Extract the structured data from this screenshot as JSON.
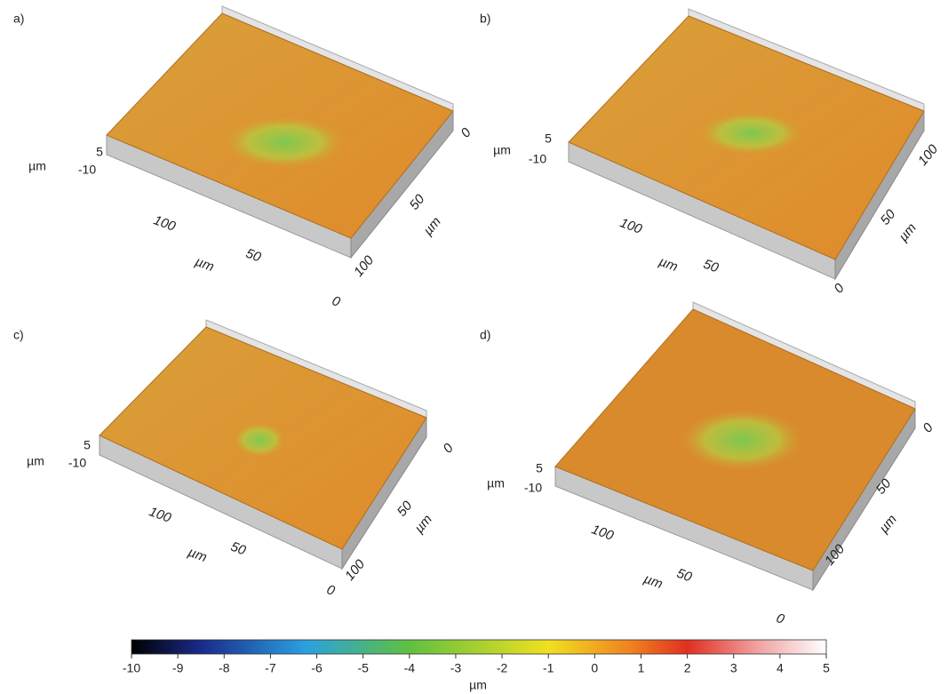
{
  "panels": [
    {
      "label": "a)",
      "z_ticks": [
        "5",
        "-10"
      ],
      "z_unit": "µm",
      "x_ticks": [
        "100",
        "50",
        "0"
      ],
      "x_unit": "µm",
      "y_ticks": [
        "0",
        "50",
        "100"
      ],
      "y_unit": "µm"
    },
    {
      "label": "b)",
      "z_ticks": [
        "5",
        "-10"
      ],
      "z_unit": "µm",
      "x_ticks": [
        "100",
        "50"
      ],
      "x_unit": "µm",
      "y_ticks": [
        "100",
        "50",
        "0"
      ],
      "y_unit": "µm"
    },
    {
      "label": "c)",
      "z_ticks": [
        "5",
        "-10"
      ],
      "z_unit": "µm",
      "x_ticks": [
        "100",
        "50",
        "0"
      ],
      "x_unit": "µm",
      "y_ticks": [
        "0",
        "50",
        "100"
      ],
      "y_unit": "µm"
    },
    {
      "label": "d)",
      "z_ticks": [
        "5",
        "-10"
      ],
      "z_unit": "µm",
      "x_ticks": [
        "100",
        "50",
        "0"
      ],
      "x_unit": "µm",
      "y_ticks": [
        "0",
        "50",
        "100"
      ],
      "y_unit": "µm"
    }
  ],
  "colorbar": {
    "lim": [
      -10,
      5
    ],
    "ticks": [
      -10,
      -9,
      -8,
      -7,
      -6,
      -5,
      -4,
      -3,
      -2,
      -1,
      0,
      1,
      2,
      3,
      4,
      5
    ],
    "label": "µm"
  }
}
